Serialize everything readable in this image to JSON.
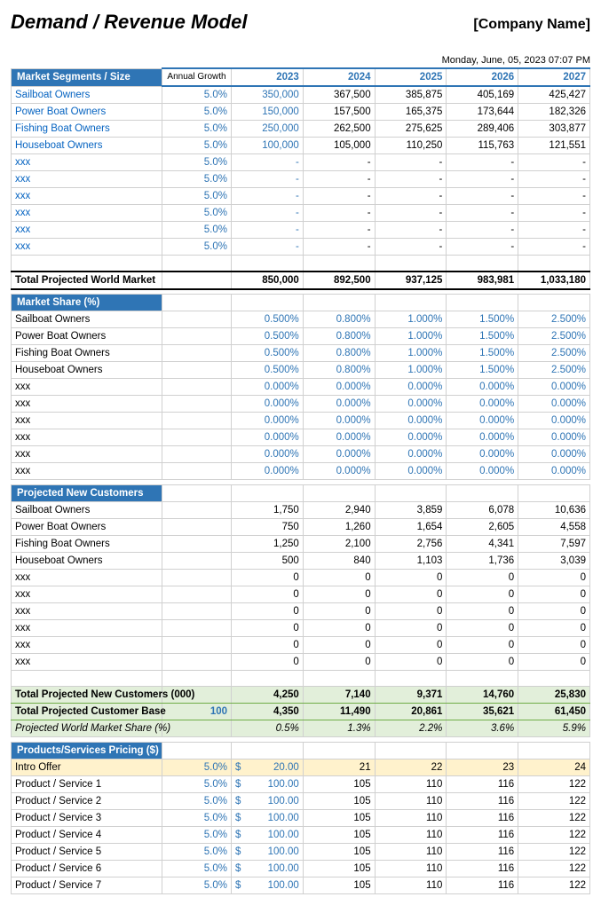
{
  "header": {
    "title": "Demand / Revenue Model",
    "company": "[Company Name]",
    "timestamp": "Monday, June, 05, 2023 07:07 PM"
  },
  "years": [
    "2023",
    "2024",
    "2025",
    "2026",
    "2027"
  ],
  "growth_label": "Annual Growth",
  "s1": {
    "title": "Market Segments / Size",
    "rows": [
      {
        "label": "Sailboat Owners",
        "link": true,
        "growth": "5.0%",
        "vals": [
          "350,000",
          "367,500",
          "385,875",
          "405,169",
          "425,427"
        ],
        "blue0": true
      },
      {
        "label": "Power Boat Owners",
        "link": true,
        "growth": "5.0%",
        "vals": [
          "150,000",
          "157,500",
          "165,375",
          "173,644",
          "182,326"
        ],
        "blue0": true
      },
      {
        "label": "Fishing Boat Owners",
        "link": true,
        "growth": "5.0%",
        "vals": [
          "250,000",
          "262,500",
          "275,625",
          "289,406",
          "303,877"
        ],
        "blue0": true
      },
      {
        "label": "Houseboat Owners",
        "link": true,
        "growth": "5.0%",
        "vals": [
          "100,000",
          "105,000",
          "110,250",
          "115,763",
          "121,551"
        ],
        "blue0": true
      },
      {
        "label": "xxx",
        "link": true,
        "growth": "5.0%",
        "vals": [
          "-",
          "-",
          "-",
          "-",
          "-"
        ],
        "blue0": true
      },
      {
        "label": "xxx",
        "link": true,
        "growth": "5.0%",
        "vals": [
          "-",
          "-",
          "-",
          "-",
          "-"
        ],
        "blue0": true
      },
      {
        "label": "xxx",
        "link": true,
        "growth": "5.0%",
        "vals": [
          "-",
          "-",
          "-",
          "-",
          "-"
        ],
        "blue0": true
      },
      {
        "label": "xxx",
        "link": true,
        "growth": "5.0%",
        "vals": [
          "-",
          "-",
          "-",
          "-",
          "-"
        ],
        "blue0": true
      },
      {
        "label": "xxx",
        "link": true,
        "growth": "5.0%",
        "vals": [
          "-",
          "-",
          "-",
          "-",
          "-"
        ],
        "blue0": true
      },
      {
        "label": "xxx",
        "link": true,
        "growth": "5.0%",
        "vals": [
          "-",
          "-",
          "-",
          "-",
          "-"
        ],
        "blue0": true
      }
    ],
    "total": {
      "label": "Total Projected World Market",
      "vals": [
        "850,000",
        "892,500",
        "937,125",
        "983,981",
        "1,033,180"
      ]
    }
  },
  "s2": {
    "title": "Market Share (%)",
    "rows": [
      {
        "label": "Sailboat Owners",
        "vals": [
          "0.500%",
          "0.800%",
          "1.000%",
          "1.500%",
          "2.500%"
        ]
      },
      {
        "label": "Power Boat Owners",
        "vals": [
          "0.500%",
          "0.800%",
          "1.000%",
          "1.500%",
          "2.500%"
        ]
      },
      {
        "label": "Fishing Boat Owners",
        "vals": [
          "0.500%",
          "0.800%",
          "1.000%",
          "1.500%",
          "2.500%"
        ]
      },
      {
        "label": "Houseboat Owners",
        "vals": [
          "0.500%",
          "0.800%",
          "1.000%",
          "1.500%",
          "2.500%"
        ]
      },
      {
        "label": "xxx",
        "vals": [
          "0.000%",
          "0.000%",
          "0.000%",
          "0.000%",
          "0.000%"
        ]
      },
      {
        "label": "xxx",
        "vals": [
          "0.000%",
          "0.000%",
          "0.000%",
          "0.000%",
          "0.000%"
        ]
      },
      {
        "label": "xxx",
        "vals": [
          "0.000%",
          "0.000%",
          "0.000%",
          "0.000%",
          "0.000%"
        ]
      },
      {
        "label": "xxx",
        "vals": [
          "0.000%",
          "0.000%",
          "0.000%",
          "0.000%",
          "0.000%"
        ]
      },
      {
        "label": "xxx",
        "vals": [
          "0.000%",
          "0.000%",
          "0.000%",
          "0.000%",
          "0.000%"
        ]
      },
      {
        "label": "xxx",
        "vals": [
          "0.000%",
          "0.000%",
          "0.000%",
          "0.000%",
          "0.000%"
        ]
      }
    ]
  },
  "s3": {
    "title": "Projected New Customers",
    "rows": [
      {
        "label": "Sailboat Owners",
        "vals": [
          "1,750",
          "2,940",
          "3,859",
          "6,078",
          "10,636"
        ]
      },
      {
        "label": "Power Boat Owners",
        "vals": [
          "750",
          "1,260",
          "1,654",
          "2,605",
          "4,558"
        ]
      },
      {
        "label": "Fishing Boat Owners",
        "vals": [
          "1,250",
          "2,100",
          "2,756",
          "4,341",
          "7,597"
        ]
      },
      {
        "label": "Houseboat Owners",
        "vals": [
          "500",
          "840",
          "1,103",
          "1,736",
          "3,039"
        ]
      },
      {
        "label": "xxx",
        "vals": [
          "0",
          "0",
          "0",
          "0",
          "0"
        ]
      },
      {
        "label": "xxx",
        "vals": [
          "0",
          "0",
          "0",
          "0",
          "0"
        ]
      },
      {
        "label": "xxx",
        "vals": [
          "0",
          "0",
          "0",
          "0",
          "0"
        ]
      },
      {
        "label": "xxx",
        "vals": [
          "0",
          "0",
          "0",
          "0",
          "0"
        ]
      },
      {
        "label": "xxx",
        "vals": [
          "0",
          "0",
          "0",
          "0",
          "0"
        ]
      },
      {
        "label": "xxx",
        "vals": [
          "0",
          "0",
          "0",
          "0",
          "0"
        ]
      }
    ],
    "total1": {
      "label": "Total Projected New Customers (000)",
      "vals": [
        "4,250",
        "7,140",
        "9,371",
        "14,760",
        "25,830"
      ]
    },
    "total2": {
      "label": "Total Projected Customer Base",
      "extra": "100",
      "vals": [
        "4,350",
        "11,490",
        "20,861",
        "35,621",
        "61,450"
      ]
    },
    "total3": {
      "label": "Projected World Market Share (%)",
      "vals": [
        "0.5%",
        "1.3%",
        "2.2%",
        "3.6%",
        "5.9%"
      ]
    }
  },
  "s4": {
    "title": "Products/Services Pricing ($)",
    "rows": [
      {
        "label": "Intro Offer",
        "growth": "5.0%",
        "price": "20.00",
        "vals": [
          "21",
          "22",
          "23",
          "24"
        ],
        "yellow": true
      },
      {
        "label": "Product / Service 1",
        "growth": "5.0%",
        "price": "100.00",
        "vals": [
          "105",
          "110",
          "116",
          "122"
        ]
      },
      {
        "label": "Product / Service 2",
        "growth": "5.0%",
        "price": "100.00",
        "vals": [
          "105",
          "110",
          "116",
          "122"
        ]
      },
      {
        "label": "Product / Service 3",
        "growth": "5.0%",
        "price": "100.00",
        "vals": [
          "105",
          "110",
          "116",
          "122"
        ]
      },
      {
        "label": "Product / Service 4",
        "growth": "5.0%",
        "price": "100.00",
        "vals": [
          "105",
          "110",
          "116",
          "122"
        ]
      },
      {
        "label": "Product / Service 5",
        "growth": "5.0%",
        "price": "100.00",
        "vals": [
          "105",
          "110",
          "116",
          "122"
        ]
      },
      {
        "label": "Product / Service 6",
        "growth": "5.0%",
        "price": "100.00",
        "vals": [
          "105",
          "110",
          "116",
          "122"
        ]
      },
      {
        "label": "Product / Service 7",
        "growth": "5.0%",
        "price": "100.00",
        "vals": [
          "105",
          "110",
          "116",
          "122"
        ]
      }
    ]
  }
}
